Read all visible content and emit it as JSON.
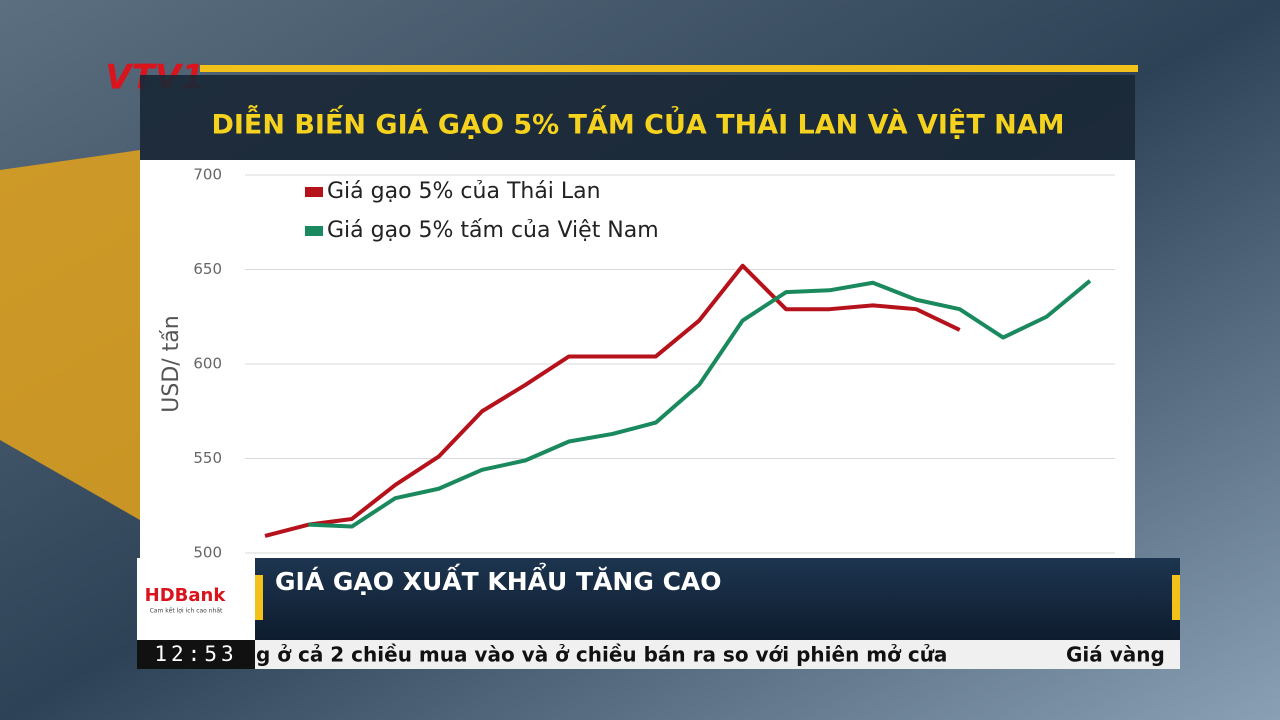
{
  "chart_data": {
    "type": "line",
    "title": "DIỄN BIẾN GIÁ GẠO 5% TẤM CỦA THÁI LAN VÀ VIỆT NAM",
    "ylabel": "USD/ tấn",
    "categories": [
      null,
      null,
      null,
      null,
      null,
      null,
      null,
      null,
      null,
      null,
      null,
      null,
      null,
      null,
      null,
      null,
      null,
      null,
      null,
      null
    ],
    "series": [
      {
        "name": "Giá gạo 5% của Thái Lan",
        "color": "#b5121b",
        "values": [
          509,
          515,
          518,
          536,
          551,
          575,
          589,
          604,
          604,
          604,
          623,
          652,
          629,
          629,
          631,
          629,
          618,
          null,
          null,
          null
        ]
      },
      {
        "name": "Giá gạo 5% tấm của Việt Nam",
        "color": "#1a8a5e",
        "values": [
          null,
          515,
          514,
          529,
          534,
          544,
          549,
          559,
          563,
          569,
          589,
          623,
          638,
          639,
          643,
          634,
          629,
          614,
          625,
          644
        ]
      }
    ],
    "ylim": [
      500,
      700
    ],
    "yticks": [
      500,
      550,
      600,
      650,
      700
    ],
    "grid": true,
    "legend": "top-left"
  },
  "broadcast": {
    "channel": "VTV1",
    "headline": "GIÁ GẠO XUẤT KHẨU TĂNG CAO",
    "sponsor": "HDBank",
    "sponsor_tagline": "Cam kết lợi ích cao nhất",
    "clock": "12:53",
    "ticker": [
      "g ở cả 2 chiều mua vào và ở chiều bán ra so với phiên mở cửa",
      "Giá vàng"
    ]
  }
}
